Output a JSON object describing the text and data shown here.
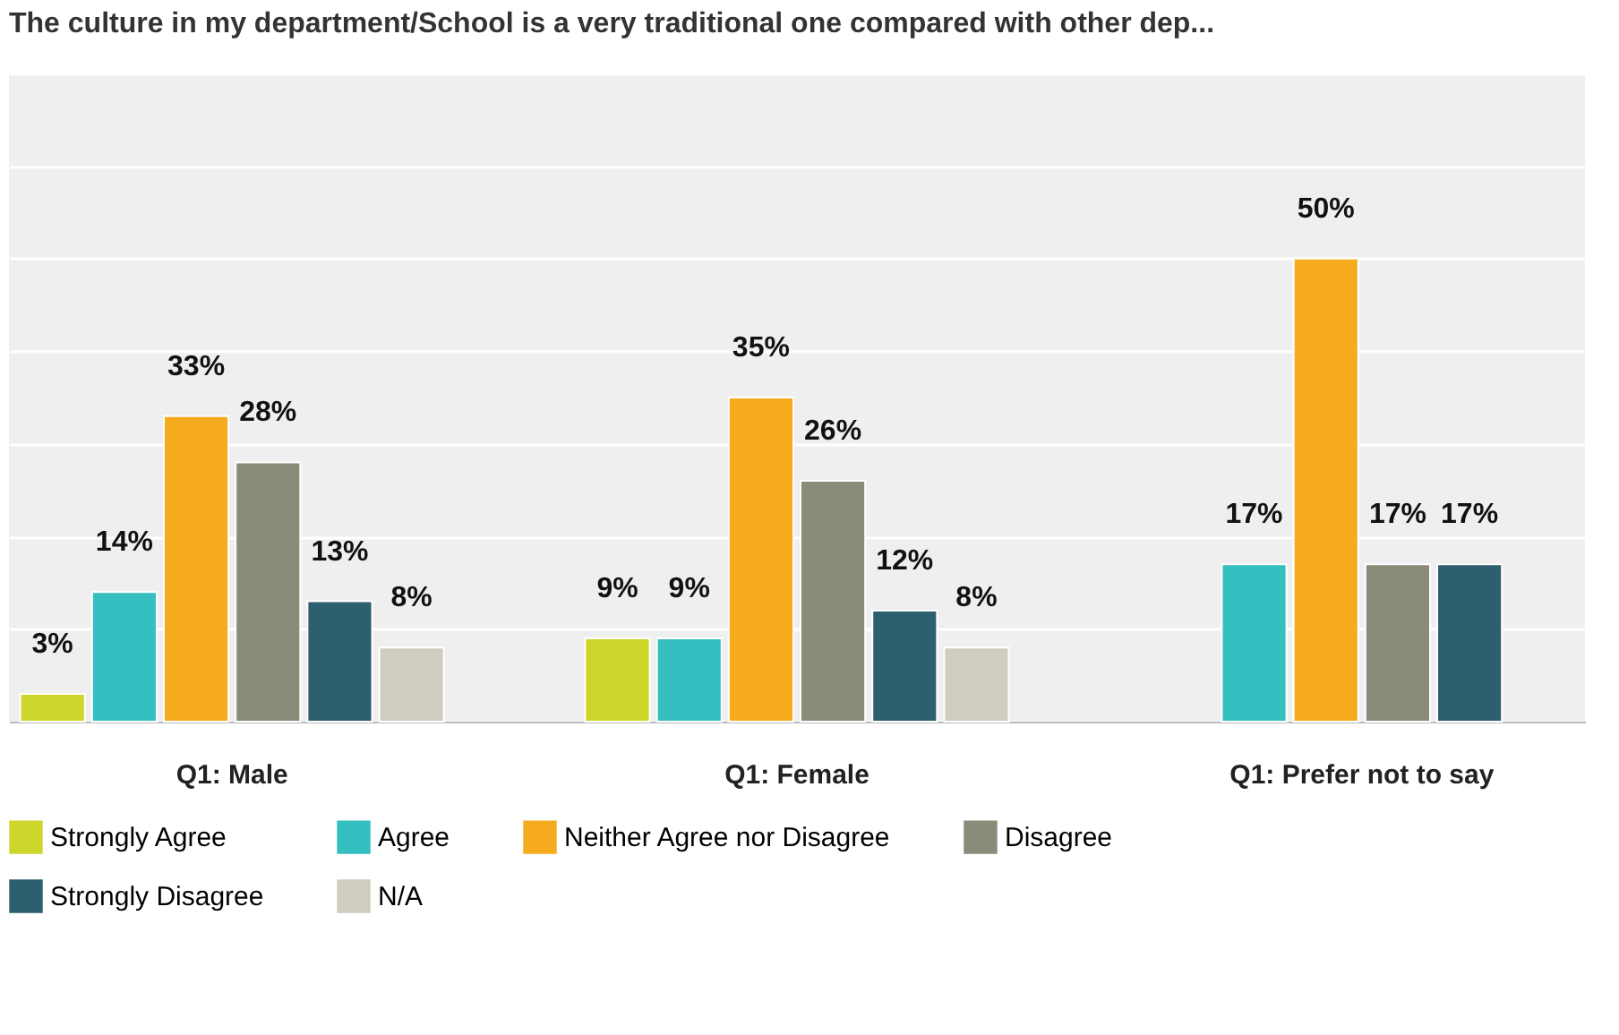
{
  "chart_data": {
    "type": "bar",
    "title": "The culture in my department/School is a very traditional one compared with other dep...",
    "categories": [
      "Q1: Male",
      "Q1: Female",
      "Q1: Prefer not to say"
    ],
    "series": [
      {
        "name": "Strongly Agree",
        "color": "#cdd62a",
        "values": [
          3,
          9,
          null
        ],
        "value_labels": [
          "3%",
          "9%",
          null
        ]
      },
      {
        "name": "Agree",
        "color": "#35bfc1",
        "values": [
          14,
          9,
          17
        ],
        "value_labels": [
          "14%",
          "9%",
          "17%"
        ]
      },
      {
        "name": "Neither Agree nor Disagree",
        "color": "#f6ab1e",
        "values": [
          33,
          35,
          50
        ],
        "value_labels": [
          "33%",
          "35%",
          "50%"
        ]
      },
      {
        "name": "Disagree",
        "color": "#8a8b79",
        "values": [
          28,
          26,
          17
        ],
        "value_labels": [
          "28%",
          "26%",
          "17%"
        ]
      },
      {
        "name": "Strongly Disagree",
        "color": "#2e5f6e",
        "values": [
          13,
          12,
          17
        ],
        "value_labels": [
          "13%",
          "12%",
          "17%"
        ]
      },
      {
        "name": "N/A",
        "color": "#cfcdbf",
        "values": [
          8,
          8,
          null
        ],
        "value_labels": [
          "8%",
          "8%",
          null
        ]
      }
    ],
    "ylim": [
      0,
      70
    ],
    "yticks": [
      0,
      10,
      20,
      30,
      40,
      50,
      60,
      70
    ],
    "tick_labels": "x",
    "grid": "y",
    "legend": "bottom"
  }
}
